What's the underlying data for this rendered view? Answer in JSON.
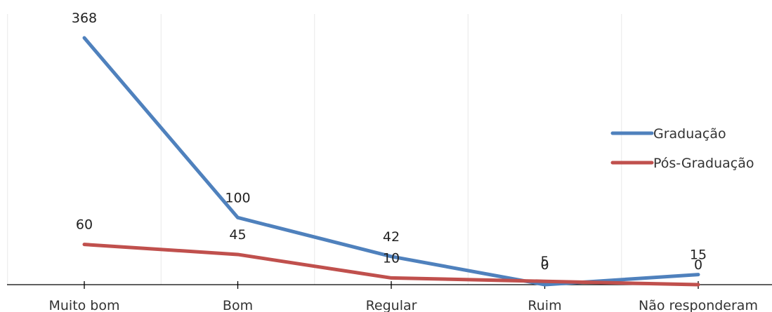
{
  "chart_data": {
    "type": "line",
    "categories": [
      "Muito bom",
      "Bom",
      "Regular",
      "Ruim",
      "Não responderam"
    ],
    "series": [
      {
        "name": "Graduação",
        "values": [
          368,
          100,
          42,
          0,
          15
        ],
        "color": "#4f81bd"
      },
      {
        "name": "Pós-Graduação",
        "values": [
          60,
          45,
          10,
          5,
          0
        ],
        "color": "#c0504d"
      }
    ],
    "ylim": [
      0,
      400
    ],
    "grid": true,
    "legend": "right"
  }
}
